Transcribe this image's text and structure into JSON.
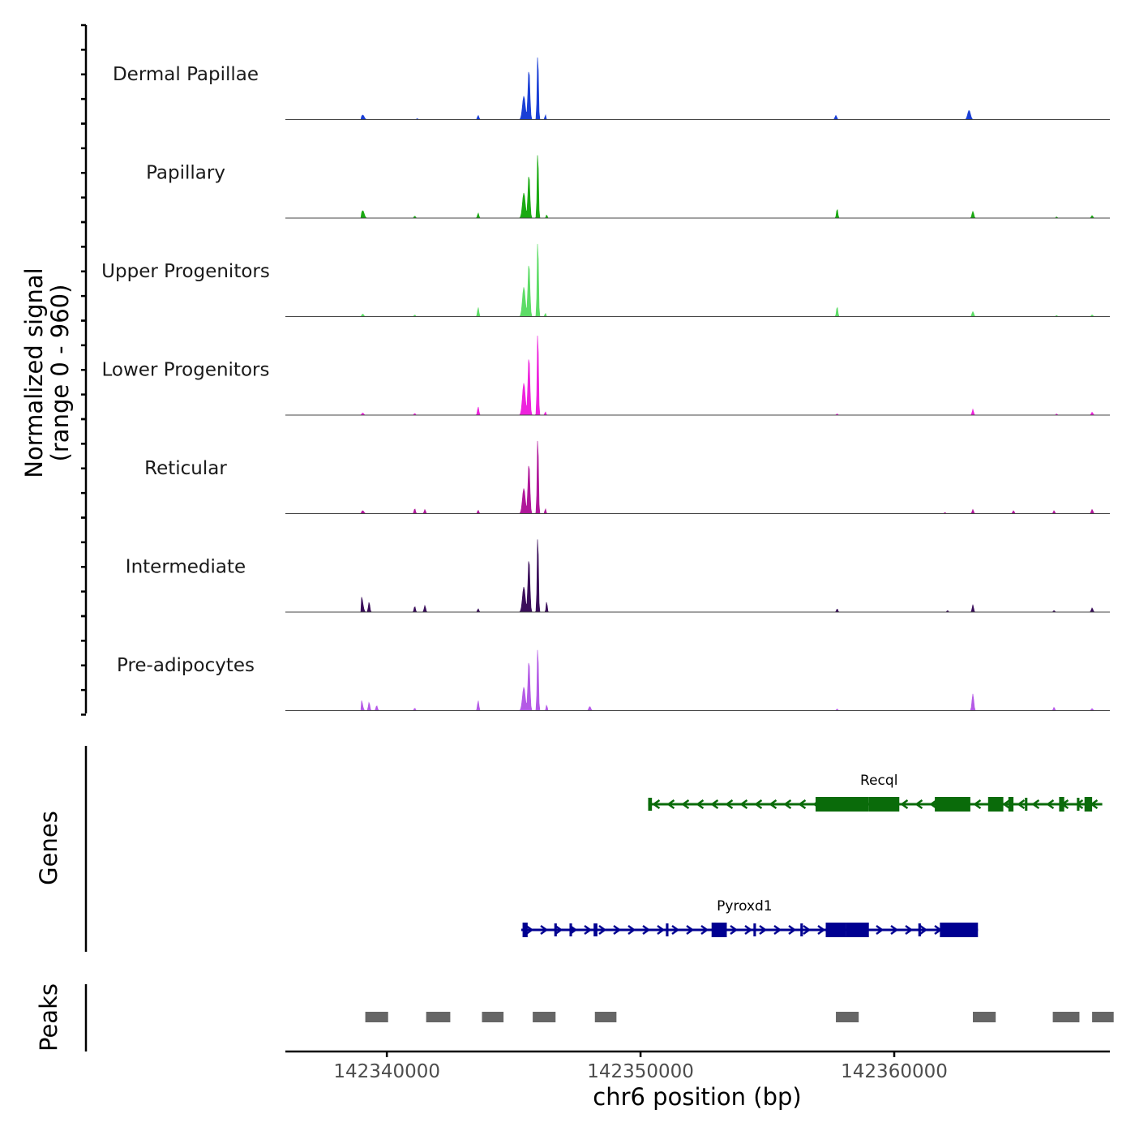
{
  "chart_data": {
    "type": "area",
    "title": "",
    "chromosome": "chr6",
    "xlabel": "chr6 position (bp)",
    "xlim": [
      142336000,
      142368500
    ],
    "x_ticks": [
      142340000,
      142350000,
      142360000
    ],
    "x_tick_labels": [
      "142340000",
      "142350000",
      "142360000"
    ],
    "ylabel": "Normalized signal",
    "ylabel_sub": "(range 0 - 960)",
    "ylim": [
      0,
      960
    ],
    "series": [
      {
        "name": "Dermal Papillae",
        "color": "#1a3fd6",
        "peaks": [
          {
            "pos": 142339050,
            "width": 220,
            "height": 55
          },
          {
            "pos": 142341200,
            "width": 100,
            "height": 12
          },
          {
            "pos": 142343600,
            "width": 120,
            "height": 50
          },
          {
            "pos": 142345400,
            "width": 220,
            "height": 280
          },
          {
            "pos": 142345600,
            "width": 150,
            "height": 600
          },
          {
            "pos": 142345950,
            "width": 100,
            "height": 820
          },
          {
            "pos": 142346250,
            "width": 80,
            "height": 60
          },
          {
            "pos": 142357700,
            "width": 140,
            "height": 50
          },
          {
            "pos": 142362950,
            "width": 220,
            "height": 110
          }
        ]
      },
      {
        "name": "Papillary",
        "color": "#1aaa12",
        "peaks": [
          {
            "pos": 142339050,
            "width": 220,
            "height": 90
          },
          {
            "pos": 142341100,
            "width": 110,
            "height": 25
          },
          {
            "pos": 142343600,
            "width": 110,
            "height": 60
          },
          {
            "pos": 142345400,
            "width": 220,
            "height": 300
          },
          {
            "pos": 142345600,
            "width": 150,
            "height": 520
          },
          {
            "pos": 142345950,
            "width": 100,
            "height": 830
          },
          {
            "pos": 142346300,
            "width": 90,
            "height": 40
          },
          {
            "pos": 142357750,
            "width": 110,
            "height": 110
          },
          {
            "pos": 142363100,
            "width": 140,
            "height": 80
          },
          {
            "pos": 142366400,
            "width": 100,
            "height": 15
          },
          {
            "pos": 142367800,
            "width": 130,
            "height": 30
          }
        ]
      },
      {
        "name": "Upper Progenitors",
        "color": "#5ddc66",
        "peaks": [
          {
            "pos": 142339050,
            "width": 150,
            "height": 30
          },
          {
            "pos": 142341100,
            "width": 110,
            "height": 20
          },
          {
            "pos": 142343600,
            "width": 110,
            "height": 110
          },
          {
            "pos": 142345400,
            "width": 220,
            "height": 350
          },
          {
            "pos": 142345600,
            "width": 150,
            "height": 640
          },
          {
            "pos": 142345950,
            "width": 100,
            "height": 960
          },
          {
            "pos": 142346250,
            "width": 90,
            "height": 40
          },
          {
            "pos": 142357750,
            "width": 110,
            "height": 120
          },
          {
            "pos": 142363100,
            "width": 140,
            "height": 60
          },
          {
            "pos": 142366400,
            "width": 100,
            "height": 15
          },
          {
            "pos": 142367800,
            "width": 130,
            "height": 20
          }
        ]
      },
      {
        "name": "Lower Progenitors",
        "color": "#ee22dd",
        "peaks": [
          {
            "pos": 142339050,
            "width": 150,
            "height": 25
          },
          {
            "pos": 142341100,
            "width": 110,
            "height": 20
          },
          {
            "pos": 142343600,
            "width": 110,
            "height": 100
          },
          {
            "pos": 142345400,
            "width": 220,
            "height": 380
          },
          {
            "pos": 142345600,
            "width": 150,
            "height": 700
          },
          {
            "pos": 142345950,
            "width": 100,
            "height": 1050
          },
          {
            "pos": 142346250,
            "width": 90,
            "height": 40
          },
          {
            "pos": 142357750,
            "width": 110,
            "height": 15
          },
          {
            "pos": 142363100,
            "width": 110,
            "height": 70
          },
          {
            "pos": 142366400,
            "width": 100,
            "height": 15
          },
          {
            "pos": 142367800,
            "width": 130,
            "height": 35
          }
        ]
      },
      {
        "name": "Reticular",
        "color": "#b0179a",
        "peaks": [
          {
            "pos": 142339050,
            "width": 180,
            "height": 35
          },
          {
            "pos": 142341100,
            "width": 110,
            "height": 60
          },
          {
            "pos": 142341500,
            "width": 110,
            "height": 50
          },
          {
            "pos": 142343600,
            "width": 110,
            "height": 40
          },
          {
            "pos": 142345400,
            "width": 220,
            "height": 300
          },
          {
            "pos": 142345600,
            "width": 150,
            "height": 600
          },
          {
            "pos": 142345950,
            "width": 100,
            "height": 960
          },
          {
            "pos": 142346250,
            "width": 90,
            "height": 60
          },
          {
            "pos": 142363100,
            "width": 110,
            "height": 50
          },
          {
            "pos": 142362000,
            "width": 90,
            "height": 15
          },
          {
            "pos": 142364700,
            "width": 120,
            "height": 35
          },
          {
            "pos": 142366300,
            "width": 110,
            "height": 35
          },
          {
            "pos": 142367800,
            "width": 130,
            "height": 50
          }
        ]
      },
      {
        "name": "Intermediate",
        "color": "#3a0e5a",
        "peaks": [
          {
            "pos": 142339000,
            "width": 220,
            "height": 180
          },
          {
            "pos": 142339300,
            "width": 120,
            "height": 120
          },
          {
            "pos": 142341100,
            "width": 110,
            "height": 70
          },
          {
            "pos": 142341500,
            "width": 120,
            "height": 80
          },
          {
            "pos": 142343600,
            "width": 110,
            "height": 40
          },
          {
            "pos": 142345400,
            "width": 220,
            "height": 300
          },
          {
            "pos": 142345600,
            "width": 150,
            "height": 640
          },
          {
            "pos": 142345950,
            "width": 100,
            "height": 960
          },
          {
            "pos": 142346300,
            "width": 90,
            "height": 130
          },
          {
            "pos": 142357750,
            "width": 110,
            "height": 40
          },
          {
            "pos": 142362100,
            "width": 100,
            "height": 20
          },
          {
            "pos": 142363100,
            "width": 110,
            "height": 90
          },
          {
            "pos": 142366300,
            "width": 110,
            "height": 20
          },
          {
            "pos": 142367800,
            "width": 130,
            "height": 50
          }
        ]
      },
      {
        "name": "Pre-adipocytes",
        "color": "#b45ae6",
        "peaks": [
          {
            "pos": 142339000,
            "width": 180,
            "height": 120
          },
          {
            "pos": 142339300,
            "width": 120,
            "height": 100
          },
          {
            "pos": 142339600,
            "width": 120,
            "height": 60
          },
          {
            "pos": 142341100,
            "width": 110,
            "height": 30
          },
          {
            "pos": 142343600,
            "width": 110,
            "height": 120
          },
          {
            "pos": 142345400,
            "width": 220,
            "height": 280
          },
          {
            "pos": 142345600,
            "width": 150,
            "height": 600
          },
          {
            "pos": 142345950,
            "width": 100,
            "height": 800
          },
          {
            "pos": 142346300,
            "width": 90,
            "height": 70
          },
          {
            "pos": 142348000,
            "width": 150,
            "height": 50
          },
          {
            "pos": 142357750,
            "width": 110,
            "height": 20
          },
          {
            "pos": 142363100,
            "width": 140,
            "height": 200
          },
          {
            "pos": 142366300,
            "width": 110,
            "height": 40
          },
          {
            "pos": 142367800,
            "width": 130,
            "height": 25
          }
        ]
      }
    ],
    "genes_label": "Genes",
    "genes": [
      {
        "name": "Recql",
        "strand": "-",
        "color": "#0a6b0a",
        "start": 142350300,
        "end": 142368200,
        "exons": [
          [
            142350300,
            142350450
          ],
          [
            142356900,
            142359000
          ],
          [
            142359000,
            142360200
          ],
          [
            142361600,
            142363000
          ],
          [
            142363700,
            142364300
          ],
          [
            142364500,
            142364700
          ],
          [
            142365150,
            142365250
          ],
          [
            142366500,
            142366700
          ],
          [
            142367200,
            142367300
          ],
          [
            142367500,
            142367800
          ]
        ]
      },
      {
        "name": "Pyroxd1",
        "strand": "+",
        "color": "#000091",
        "start": 142345300,
        "end": 142363300,
        "exons": [
          [
            142345350,
            142345550
          ],
          [
            142346600,
            142346700
          ],
          [
            142347200,
            142347300
          ],
          [
            142348150,
            142348300
          ],
          [
            142351000,
            142351100
          ],
          [
            142352800,
            142353400
          ],
          [
            142354450,
            142354550
          ],
          [
            142356300,
            142356400
          ],
          [
            142357300,
            142358100
          ],
          [
            142358100,
            142359000
          ],
          [
            142361800,
            142363300
          ],
          [
            142360950,
            142361050
          ]
        ]
      }
    ],
    "peaks_label": "Peaks",
    "peak_regions": [
      [
        142339150,
        142340050
      ],
      [
        142341550,
        142342500
      ],
      [
        142343750,
        142344600
      ],
      [
        142345750,
        142346650
      ],
      [
        142348200,
        142349050
      ],
      [
        142357700,
        142358600
      ],
      [
        142363100,
        142364000
      ],
      [
        142366250,
        142367300
      ],
      [
        142367800,
        142368650
      ]
    ]
  }
}
